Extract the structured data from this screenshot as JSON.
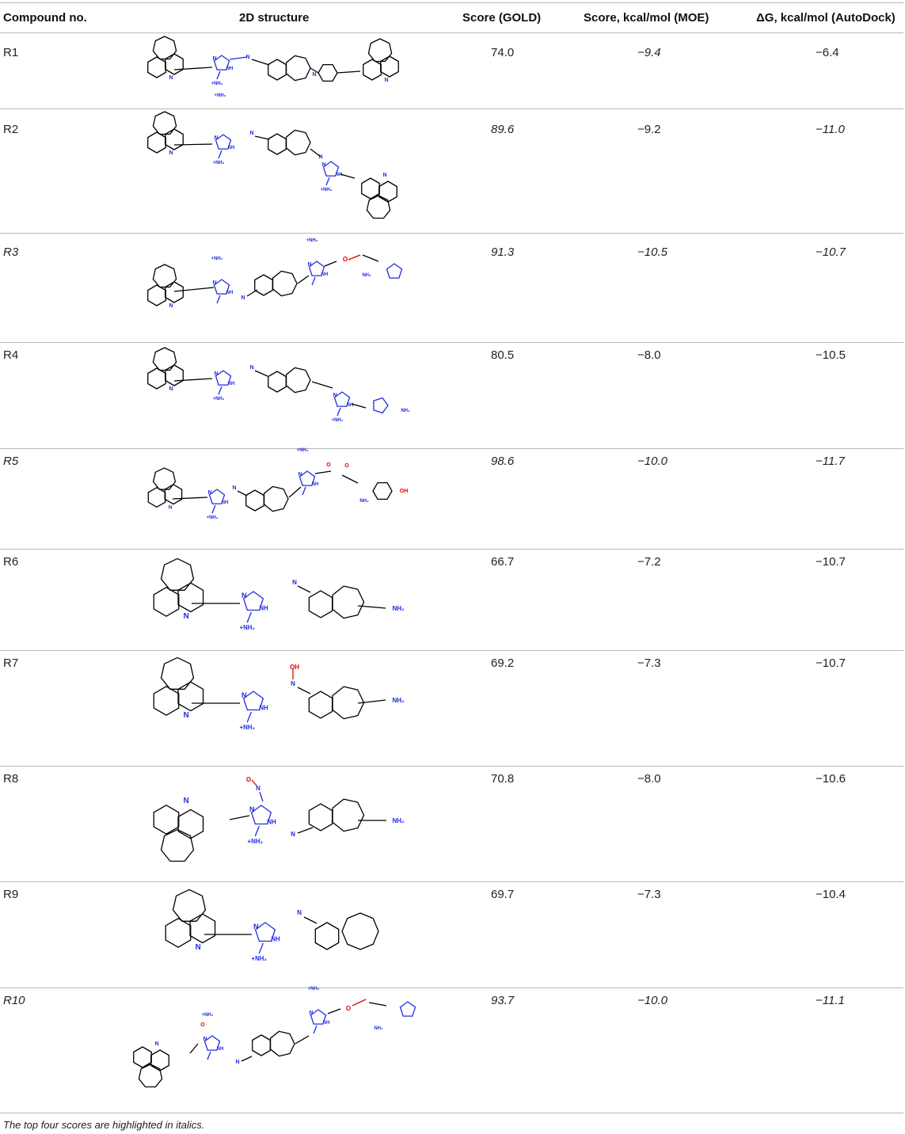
{
  "headers": {
    "compound": "Compound no.",
    "structure": "2D structure",
    "gold": "Score (GOLD)",
    "moe": "Score, kcal/mol (MOE)",
    "autodock": "ΔG, kcal/mol (AutoDock)"
  },
  "rows": [
    {
      "id": "R1",
      "gold": "74.0",
      "moe": "−9.4",
      "autodock": "−6.4",
      "it": [
        false,
        false,
        true,
        false
      ]
    },
    {
      "id": "R2",
      "gold": "89.6",
      "moe": "−9.2",
      "autodock": "−11.0",
      "it": [
        false,
        true,
        false,
        true
      ]
    },
    {
      "id": "R3",
      "gold": "91.3",
      "moe": "−10.5",
      "autodock": "−10.7",
      "it": [
        true,
        true,
        true,
        true
      ]
    },
    {
      "id": "R4",
      "gold": "80.5",
      "moe": "−8.0",
      "autodock": "−10.5",
      "it": [
        false,
        false,
        false,
        false
      ]
    },
    {
      "id": "R5",
      "gold": "98.6",
      "moe": "−10.0",
      "autodock": "−11.7",
      "it": [
        true,
        true,
        true,
        true
      ]
    },
    {
      "id": "R6",
      "gold": "66.7",
      "moe": "−7.2",
      "autodock": "−10.7",
      "it": [
        false,
        false,
        false,
        false
      ]
    },
    {
      "id": "R7",
      "gold": "69.2",
      "moe": "−7.3",
      "autodock": "−10.7",
      "it": [
        false,
        false,
        false,
        false
      ]
    },
    {
      "id": "R8",
      "gold": "70.8",
      "moe": "−8.0",
      "autodock": "−10.6",
      "it": [
        false,
        false,
        false,
        false
      ]
    },
    {
      "id": "R9",
      "gold": "69.7",
      "moe": "−7.3",
      "autodock": "−10.4",
      "it": [
        false,
        false,
        false,
        false
      ]
    },
    {
      "id": "R10",
      "gold": "93.7",
      "moe": "−10.0",
      "autodock": "−11.1",
      "it": [
        true,
        true,
        true,
        true
      ]
    }
  ],
  "atom_labels": {
    "nh2_plus": "+NH₂",
    "nh2": "NH₂",
    "nh": "NH",
    "n": "N",
    "oh": "OH",
    "o": "O"
  },
  "colors": {
    "nitrogen": "#1f2ce0",
    "oxygen": "#e00000",
    "bond": "#000000",
    "rule": "#b9b9b9"
  },
  "footnote": "The top four scores are highlighted in italics."
}
